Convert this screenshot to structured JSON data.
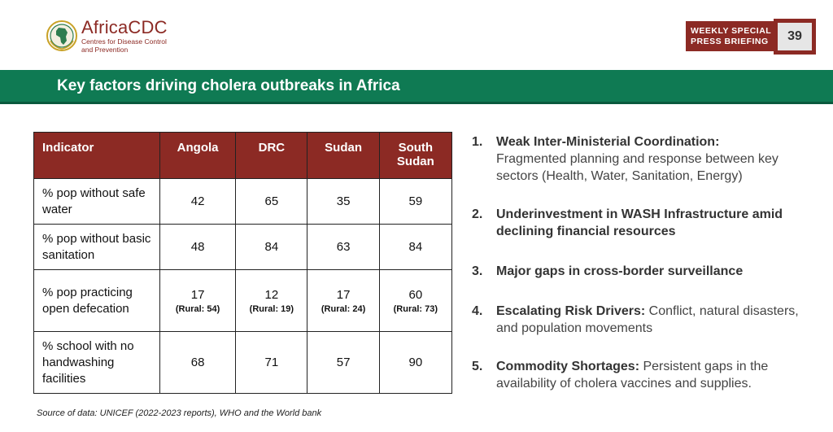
{
  "logo": {
    "name": "AfricaCDC",
    "subtitle_line1": "Centres for Disease Control",
    "subtitle_line2": "and Prevention"
  },
  "badge": {
    "line1": "WEEKLY SPECIAL",
    "line2": "PRESS BRIEFING",
    "page_number": "39"
  },
  "title": "Key factors driving cholera outbreaks in Africa",
  "table": {
    "headers": [
      "Indicator",
      "Angola",
      "DRC",
      "Sudan",
      "South Sudan"
    ],
    "rows": [
      {
        "indicator": "% pop without safe water",
        "values": [
          "42",
          "65",
          "35",
          "59"
        ]
      },
      {
        "indicator": "% pop without basic sanitation",
        "values": [
          "48",
          "84",
          "63",
          "84"
        ]
      },
      {
        "indicator": "% pop practicing open defecation",
        "values": [
          "17",
          "12",
          "17",
          "60"
        ],
        "rural": [
          "(Rural: 54)",
          "(Rural: 19)",
          "(Rural: 24)",
          "(Rural: 73)"
        ]
      },
      {
        "indicator": "% school with no handwashing facilities",
        "values": [
          "68",
          "71",
          "57",
          "90"
        ]
      }
    ]
  },
  "source": "Source of data: UNICEF (2022-2023 reports), WHO and the World bank",
  "factors": [
    {
      "num": "1.",
      "head": "Weak Inter-Ministerial Coordination:",
      "text": "Fragmented planning  and response between key sectors (Health, Water, Sanitation, Energy)"
    },
    {
      "num": "2.",
      "head": "Underinvestment in WASH Infrastructure amid declining financial resources",
      "text": ""
    },
    {
      "num": "3.",
      "head": "Major gaps in cross-border surveillance",
      "text": ""
    },
    {
      "num": "4.",
      "head": "Escalating Risk Drivers:",
      "text": " Conflict, natural disasters, and population movements"
    },
    {
      "num": "5.",
      "head": "Commodity Shortages:",
      "text": " Persistent gaps in the availability of cholera vaccines and supplies."
    }
  ],
  "colors": {
    "brand": "#8c2a24",
    "title_bar": "#0f7a53"
  }
}
